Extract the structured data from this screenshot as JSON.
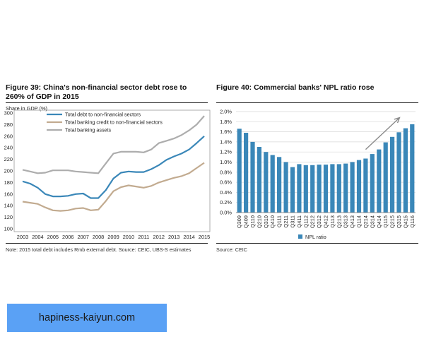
{
  "chart_data": [
    {
      "type": "line",
      "title": "Figure 39: China's non-financial sector debt rose to 260% of GDP in 2015",
      "ylabel": "Share in GDP (%)",
      "xlabel": "",
      "ylim": [
        100,
        300
      ],
      "yticks": [
        "100",
        "120",
        "140",
        "160",
        "180",
        "200",
        "220",
        "240",
        "260",
        "280",
        "300"
      ],
      "categories": [
        "2003",
        "2004",
        "2005",
        "2006",
        "2007",
        "2008",
        "2009",
        "2010",
        "2011",
        "2012",
        "2013",
        "2014",
        "2015"
      ],
      "legend_position": "top-left",
      "grid": false,
      "series": [
        {
          "name": "Total debt to non-financial sectors",
          "color": "#3a87b8",
          "x": [
            2003,
            2003.5,
            2004,
            2004.5,
            2005,
            2005.5,
            2006,
            2006.5,
            2007,
            2007.5,
            2008,
            2008.5,
            2009,
            2009.5,
            2010,
            2010.5,
            2011,
            2011.5,
            2012,
            2012.5,
            2013,
            2013.5,
            2014,
            2014.5,
            2015
          ],
          "y": [
            182,
            178,
            171,
            160,
            156,
            156,
            157,
            160,
            161,
            153,
            153,
            167,
            187,
            197,
            199,
            198,
            198,
            203,
            210,
            219,
            225,
            230,
            237,
            248,
            260
          ]
        },
        {
          "name": "Total banking credit to non-financial sectors",
          "color": "#c2ab90",
          "x": [
            2003,
            2003.5,
            2004,
            2004.5,
            2005,
            2005.5,
            2006,
            2006.5,
            2007,
            2007.5,
            2008,
            2008.5,
            2009,
            2009.5,
            2010,
            2010.5,
            2011,
            2011.5,
            2012,
            2012.5,
            2013,
            2013.5,
            2014,
            2014.5,
            2015
          ],
          "y": [
            147,
            145,
            143,
            137,
            132,
            131,
            132,
            135,
            136,
            132,
            133,
            148,
            165,
            172,
            175,
            173,
            171,
            174,
            180,
            184,
            188,
            191,
            196,
            205,
            214
          ]
        },
        {
          "name": "Total banking assets",
          "color": "#adadad",
          "x": [
            2003,
            2003.5,
            2004,
            2004.5,
            2005,
            2005.5,
            2006,
            2006.5,
            2007,
            2007.5,
            2008,
            2008.5,
            2009,
            2009.5,
            2010,
            2010.5,
            2011,
            2011.5,
            2012,
            2012.5,
            2013,
            2013.5,
            2014,
            2014.5,
            2015
          ],
          "y": [
            202,
            199,
            196,
            197,
            201,
            201,
            201,
            199,
            198,
            197,
            196,
            213,
            230,
            233,
            233,
            233,
            232,
            237,
            248,
            252,
            256,
            262,
            270,
            280,
            295
          ]
        }
      ],
      "note": "Note: 2015 total debt includes Rmb external debt. Source:  CEIC, UBS-S estimates"
    },
    {
      "type": "bar",
      "title": "Figure 40: Commercial banks' NPL ratio rose",
      "ylim": [
        0,
        2.0
      ],
      "yticks": [
        "0.0%",
        "0.2%",
        "0.4%",
        "0.6%",
        "0.8%",
        "1.0%",
        "1.2%",
        "1.4%",
        "1.6%",
        "1.8%",
        "2.0%"
      ],
      "categories": [
        "Q309",
        "Q409",
        "Q110",
        "Q210",
        "Q310",
        "Q410",
        "Q111",
        "Q211",
        "Q311",
        "Q411",
        "Q112",
        "Q212",
        "Q312",
        "Q412",
        "Q113",
        "Q213",
        "Q313",
        "Q413",
        "Q114",
        "Q214",
        "Q314",
        "Q414",
        "Q115",
        "Q215",
        "Q315",
        "Q415",
        "Q116"
      ],
      "series": [
        {
          "name": "NPL ratio",
          "color": "#3a87b8",
          "values": [
            1.66,
            1.58,
            1.4,
            1.3,
            1.2,
            1.14,
            1.1,
            1.0,
            0.9,
            0.96,
            0.94,
            0.94,
            0.95,
            0.95,
            0.96,
            0.96,
            0.97,
            1.0,
            1.04,
            1.07,
            1.16,
            1.25,
            1.39,
            1.5,
            1.59,
            1.67,
            1.75
          ]
        }
      ],
      "legend_position": "bottom-center",
      "grid": true,
      "annotations": [
        "upward trend arrow"
      ],
      "note": "Source:  CEIC"
    }
  ],
  "banner": {
    "text": "hapiness-kaiyun.com",
    "color": "#5aa1f5"
  }
}
